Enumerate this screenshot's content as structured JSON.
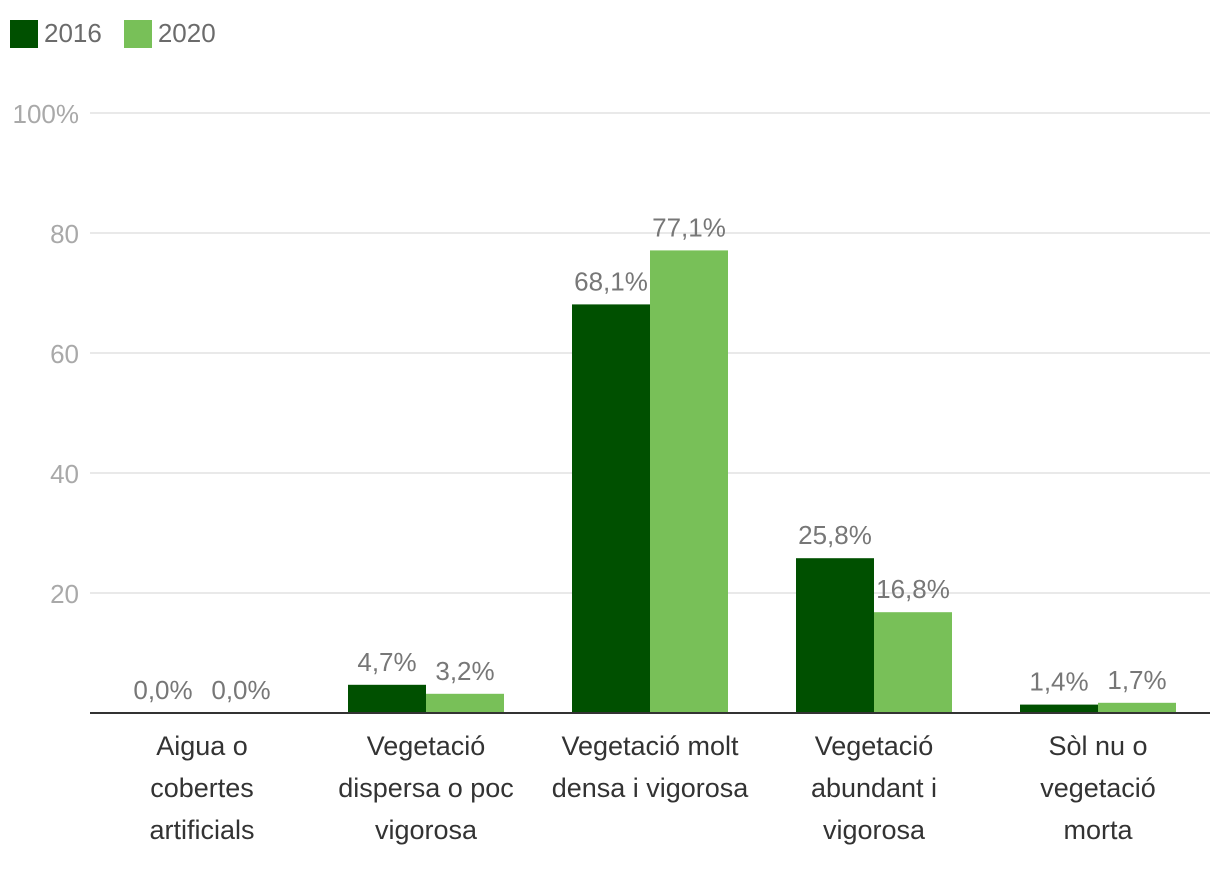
{
  "chart_data": {
    "type": "bar",
    "title": "",
    "xlabel": "",
    "ylabel": "",
    "ylim": [
      0,
      100
    ],
    "yticks": [
      {
        "value": 20,
        "label": "20"
      },
      {
        "value": 40,
        "label": "40"
      },
      {
        "value": 60,
        "label": "60"
      },
      {
        "value": 80,
        "label": "80"
      },
      {
        "value": 100,
        "label": "100%"
      }
    ],
    "categories": [
      [
        "Aigua o",
        "cobertes",
        "artificials"
      ],
      [
        "Vegetació",
        "dispersa o poc",
        "vigorosa"
      ],
      [
        "Vegetació molt",
        "densa i vigorosa"
      ],
      [
        "Vegetació",
        "abundant i",
        "vigorosa"
      ],
      [
        "Sòl nu o",
        "vegetació",
        "morta"
      ]
    ],
    "series": [
      {
        "name": "2016",
        "color": "#005000",
        "values": [
          0.0,
          4.7,
          68.1,
          25.8,
          1.4
        ],
        "labels": [
          "0,0%",
          "4,7%",
          "68,1%",
          "25,8%",
          "1,4%"
        ]
      },
      {
        "name": "2020",
        "color": "#78c058",
        "values": [
          0.0,
          3.2,
          77.1,
          16.8,
          1.7
        ],
        "labels": [
          "0,0%",
          "3,2%",
          "77,1%",
          "16,8%",
          "1,7%"
        ]
      }
    ],
    "legend_position": "top-left"
  }
}
